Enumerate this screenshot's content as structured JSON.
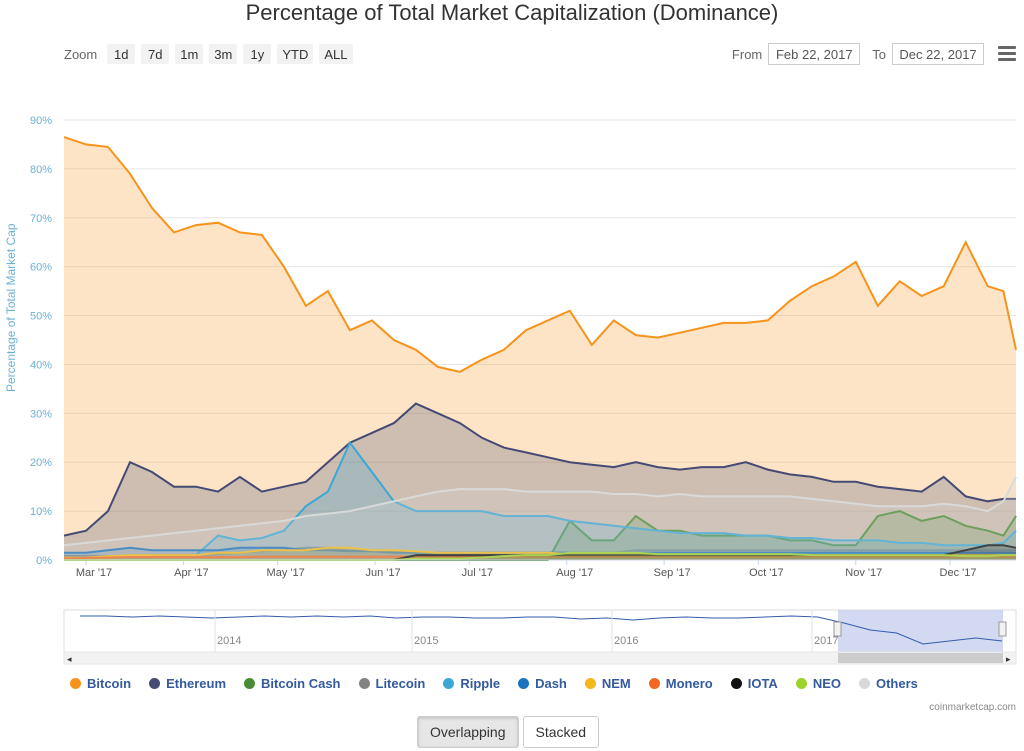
{
  "title": "Percentage of Total Market Capitalization (Dominance)",
  "zoom": {
    "label": "Zoom",
    "buttons": [
      "1d",
      "7d",
      "1m",
      "3m",
      "1y",
      "YTD",
      "ALL"
    ]
  },
  "range": {
    "from_label": "From",
    "from_value": "Feb 22, 2017",
    "to_label": "To",
    "to_value": "Dec 22, 2017"
  },
  "icons": {
    "menu": "hamburger-menu-icon"
  },
  "credit": "coinmarketcap.com",
  "mode_buttons": {
    "overlapping": "Overlapping",
    "stacked": "Stacked"
  },
  "chart_data": {
    "type": "area",
    "title": "Percentage of Total Market Capitalization (Dominance)",
    "ylabel": "Percentage of Total Market Cap",
    "ylim": [
      0,
      90
    ],
    "yticks": [
      "0%",
      "10%",
      "20%",
      "30%",
      "40%",
      "50%",
      "60%",
      "70%",
      "80%",
      "90%"
    ],
    "xticks": [
      "Mar '17",
      "Apr '17",
      "May '17",
      "Jun '17",
      "Jul '17",
      "Aug '17",
      "Sep '17",
      "Oct '17",
      "Nov '17",
      "Dec '17"
    ],
    "x": [
      "2017-02-22",
      "2017-03-01",
      "2017-03-08",
      "2017-03-15",
      "2017-03-22",
      "2017-03-29",
      "2017-04-05",
      "2017-04-12",
      "2017-04-19",
      "2017-04-26",
      "2017-05-03",
      "2017-05-10",
      "2017-05-17",
      "2017-05-24",
      "2017-05-31",
      "2017-06-07",
      "2017-06-14",
      "2017-06-21",
      "2017-06-28",
      "2017-07-05",
      "2017-07-12",
      "2017-07-19",
      "2017-07-26",
      "2017-08-02",
      "2017-08-09",
      "2017-08-16",
      "2017-08-23",
      "2017-08-30",
      "2017-09-06",
      "2017-09-13",
      "2017-09-20",
      "2017-09-27",
      "2017-10-04",
      "2017-10-11",
      "2017-10-18",
      "2017-10-25",
      "2017-11-01",
      "2017-11-08",
      "2017-11-15",
      "2017-11-22",
      "2017-11-29",
      "2017-12-06",
      "2017-12-13",
      "2017-12-18",
      "2017-12-22"
    ],
    "grid": true,
    "legend_position": "bottom",
    "series": [
      {
        "name": "Bitcoin",
        "color": "#f7931a",
        "values": [
          86.5,
          85,
          84.5,
          79,
          72,
          67,
          68.5,
          69,
          67,
          66.5,
          60,
          52,
          55,
          47,
          49,
          45,
          43,
          39.5,
          38.5,
          41,
          43,
          47,
          49,
          51,
          44,
          49,
          46,
          45.5,
          46.5,
          47.5,
          48.5,
          48.5,
          49,
          53,
          56,
          58,
          61,
          52,
          57,
          54,
          56,
          65,
          56,
          55,
          43
        ]
      },
      {
        "name": "Ethereum",
        "color": "#454a75",
        "values": [
          5,
          6,
          10,
          20,
          18,
          15,
          15,
          14,
          17,
          14,
          15,
          16,
          20,
          24,
          26,
          28,
          32,
          30,
          28,
          25,
          23,
          22,
          21,
          20,
          19.5,
          19,
          20,
          19,
          18.5,
          19,
          19,
          20,
          18.5,
          17.5,
          17,
          16,
          16,
          15,
          14.5,
          14,
          17,
          13,
          12,
          12.5,
          12.5
        ]
      },
      {
        "name": "Bitcoin Cash",
        "color": "#4a8c34",
        "values": [
          0,
          0,
          0,
          0,
          0,
          0,
          0,
          0,
          0,
          0,
          0,
          0,
          0,
          0,
          0,
          0,
          0,
          0,
          0,
          0,
          0,
          0,
          0,
          8,
          4,
          4,
          9,
          6,
          6,
          5,
          5,
          5,
          5,
          4,
          4,
          3,
          3,
          9,
          10,
          8,
          9,
          7,
          6,
          5,
          9
        ]
      },
      {
        "name": "Litecoin",
        "color": "#838383",
        "values": [
          0.8,
          0.8,
          0.8,
          1,
          1,
          1,
          1,
          1.2,
          1.5,
          1.8,
          2,
          2.5,
          2.5,
          2,
          2,
          1.8,
          1.5,
          1.5,
          1.5,
          1.5,
          1.5,
          1.5,
          1.5,
          1.5,
          1.5,
          1.5,
          2,
          2,
          2,
          2,
          2,
          2,
          2,
          2,
          2,
          2,
          2,
          2,
          2,
          2,
          2,
          2,
          2,
          2,
          2
        ]
      },
      {
        "name": "Ripple",
        "color": "#3ba7d6",
        "values": [
          0.5,
          0.5,
          0.5,
          0.5,
          0.5,
          0.8,
          1,
          5,
          4,
          4.5,
          6,
          11,
          14,
          24,
          18,
          12,
          10,
          10,
          10,
          10,
          9,
          9,
          9,
          8,
          7.5,
          7,
          6.5,
          6,
          5.5,
          5.5,
          5.5,
          5,
          5,
          4.5,
          4.5,
          4,
          4,
          4,
          3.5,
          3.5,
          3,
          3,
          3,
          3.5,
          6
        ]
      },
      {
        "name": "Dash",
        "color": "#1c75bc",
        "values": [
          1.5,
          1.5,
          2,
          2.5,
          2,
          2,
          2,
          2,
          2.5,
          2.5,
          2.5,
          2,
          2,
          1.8,
          1.8,
          1.5,
          1.5,
          1.5,
          1.5,
          1.5,
          1.5,
          1.5,
          1.5,
          1.5,
          1.5,
          1.5,
          1.5,
          1.5,
          1.5,
          1.5,
          1.5,
          1.5,
          1.5,
          1.5,
          1.5,
          1.5,
          1.5,
          1.5,
          1.5,
          1.5,
          1.5,
          1.5,
          1.5,
          1.5,
          1.5
        ]
      },
      {
        "name": "NEM",
        "color": "#f5b81b",
        "values": [
          0.5,
          0.5,
          0.8,
          1,
          1,
          1,
          1,
          1.5,
          1.5,
          2,
          2,
          2,
          2.5,
          2.5,
          2,
          2,
          1.8,
          1.5,
          1.5,
          1.5,
          1.5,
          1.5,
          1.5,
          1.2,
          1.2,
          1.2,
          1.2,
          1,
          1,
          1,
          1,
          1,
          1,
          1,
          1,
          1,
          1,
          1,
          1,
          1,
          1,
          1,
          1,
          1,
          1
        ]
      },
      {
        "name": "Monero",
        "color": "#f26822",
        "values": [
          0.3,
          0.4,
          0.5,
          0.6,
          0.6,
          0.6,
          0.6,
          0.6,
          0.6,
          0.7,
          0.7,
          0.7,
          0.7,
          0.7,
          0.7,
          0.7,
          0.7,
          0.7,
          0.7,
          0.7,
          0.7,
          0.7,
          0.7,
          0.7,
          0.7,
          0.7,
          0.7,
          0.7,
          0.7,
          0.7,
          0.7,
          0.7,
          0.7,
          0.7,
          0.7,
          0.7,
          0.7,
          0.7,
          0.7,
          0.7,
          0.7,
          0.7,
          0.7,
          0.7,
          0.7
        ]
      },
      {
        "name": "IOTA",
        "color": "#111111",
        "values": [
          0,
          0,
          0,
          0,
          0,
          0,
          0,
          0,
          0,
          0,
          0,
          0,
          0,
          0,
          0,
          0,
          1,
          1,
          1,
          1,
          1,
          1,
          1,
          1,
          1,
          1,
          1,
          1,
          1,
          1,
          1,
          1,
          1,
          1,
          1,
          1,
          1,
          1,
          1,
          1,
          1,
          2,
          3,
          3,
          2.5
        ]
      },
      {
        "name": "NEO",
        "color": "#9bd22b",
        "values": [
          0,
          0,
          0,
          0,
          0,
          0,
          0,
          0,
          0,
          0,
          0,
          0,
          0,
          0,
          0,
          0,
          0.3,
          0.3,
          0.3,
          0.5,
          0.8,
          1,
          1,
          1.5,
          1.5,
          1.5,
          1.5,
          1.2,
          1.2,
          1.2,
          1.2,
          1.2,
          1.2,
          1.2,
          1,
          1,
          1,
          1,
          1,
          1,
          1,
          0.8,
          0.8,
          1,
          1
        ]
      },
      {
        "name": "Others",
        "color": "#d9d9d9",
        "values": [
          3,
          3.5,
          4,
          4.5,
          5,
          5.5,
          6,
          6.5,
          7,
          7.5,
          8,
          9,
          9.5,
          10,
          11,
          12,
          13,
          14,
          14.5,
          14.5,
          14.5,
          14,
          14,
          14,
          14,
          13.5,
          13.5,
          13,
          13.5,
          13,
          13,
          13,
          13,
          13,
          12.5,
          12,
          11.5,
          11,
          11,
          11,
          11.5,
          11,
          10,
          12,
          17
        ]
      }
    ],
    "navigator": {
      "xticks": [
        "2014",
        "2015",
        "2016",
        "2017"
      ]
    }
  }
}
